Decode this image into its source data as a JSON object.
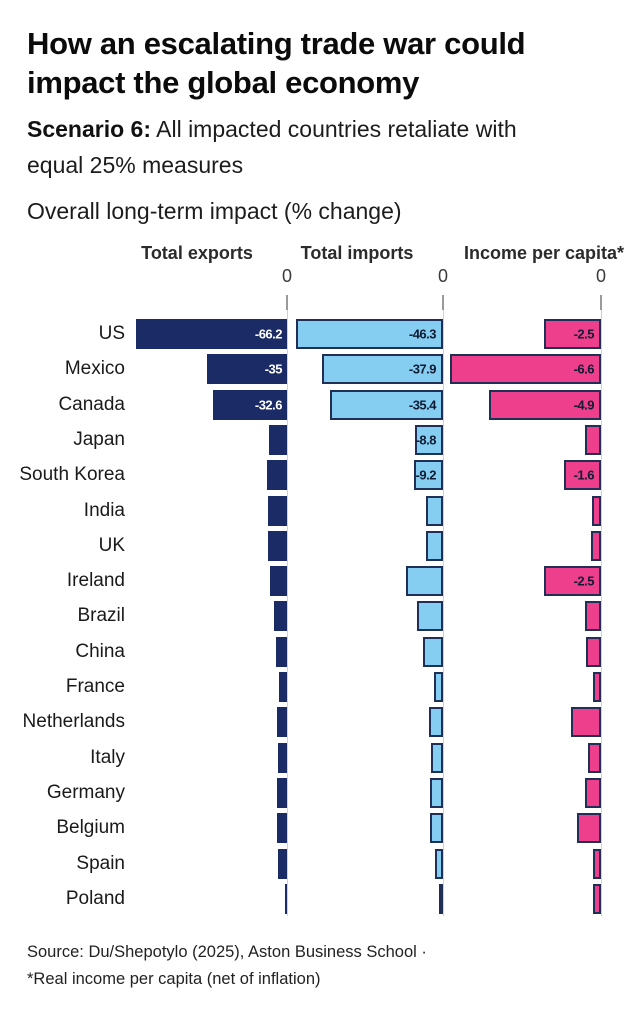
{
  "header": {
    "title": "How an escalating trade war could impact the global economy",
    "scenario_label": "Scenario 6:",
    "scenario_text": " All impacted countries retaliate with equal 25% measures",
    "measure_note": "Overall long-term impact (% change)"
  },
  "chart_data": {
    "type": "bar",
    "orientation": "horizontal",
    "value_unit": "% change",
    "axis_zero_label": "0",
    "legend_position": "column headers",
    "grid": false,
    "categories": [
      "US",
      "Mexico",
      "Canada",
      "Japan",
      "South Korea",
      "India",
      "UK",
      "Ireland",
      "Brazil",
      "China",
      "France",
      "Netherlands",
      "Italy",
      "Germany",
      "Belgium",
      "Spain",
      "Poland"
    ],
    "series": [
      {
        "name": "Total exports",
        "color": "#1A2B66",
        "border_color": null,
        "label_text_color": "#ffffff",
        "values": [
          -66.2,
          -35,
          -32.6,
          -7.9,
          -8.8,
          -8.3,
          -8.3,
          -7.5,
          -5.7,
          -4.8,
          -3.5,
          -4.4,
          -3.9,
          -4.4,
          -4.4,
          -3.9,
          -0.9
        ],
        "labels": [
          "-66.2",
          "-35",
          "-32.6",
          null,
          null,
          null,
          null,
          null,
          null,
          null,
          null,
          null,
          null,
          null,
          null,
          null,
          null
        ]
      },
      {
        "name": "Total imports",
        "color": "#85CEF2",
        "border_color": "#1F2F55",
        "label_text_color": "#111A33",
        "values": [
          -46.3,
          -37.9,
          -35.4,
          -8.8,
          -9.2,
          -5.3,
          -5.4,
          -11.7,
          -8.2,
          -6.3,
          -2.8,
          -4.4,
          -3.8,
          -4.1,
          -4.1,
          -2.5,
          -1.3
        ],
        "labels": [
          "-46.3",
          "-37.9",
          "-35.4",
          "-8.8",
          "-9.2",
          null,
          null,
          null,
          null,
          null,
          null,
          null,
          null,
          null,
          null,
          null,
          null
        ]
      },
      {
        "name": "Income per capita*",
        "color": "#EE3F8C",
        "border_color": "#1F2F55",
        "label_text_color": "#111A33",
        "values": [
          -2.5,
          -6.6,
          -4.9,
          -0.7,
          -1.6,
          -0.4,
          -0.45,
          -2.5,
          -0.7,
          -0.65,
          -0.35,
          -1.3,
          -0.55,
          -0.7,
          -1.05,
          -0.35,
          -0.35
        ],
        "labels": [
          "-2.5",
          "-6.6",
          "-4.9",
          null,
          "-1.6",
          null,
          null,
          "-2.5",
          null,
          null,
          null,
          null,
          null,
          null,
          null,
          null,
          null
        ]
      }
    ]
  },
  "colors": {
    "background": "#ffffff",
    "navy": "#1A2B66",
    "sky_blue": "#85CEF2",
    "pink": "#EE3F8C",
    "axis_line": "#d2d2d2",
    "axis_tick": "#9a9a9a",
    "title_text": "#0b0b0b",
    "body_text": "#1c1c1c"
  },
  "footer": {
    "source": "Source: Du/Shepotylo (2025), Aston Business School ·",
    "footnote": "*Real income per capita (net of inflation)"
  }
}
